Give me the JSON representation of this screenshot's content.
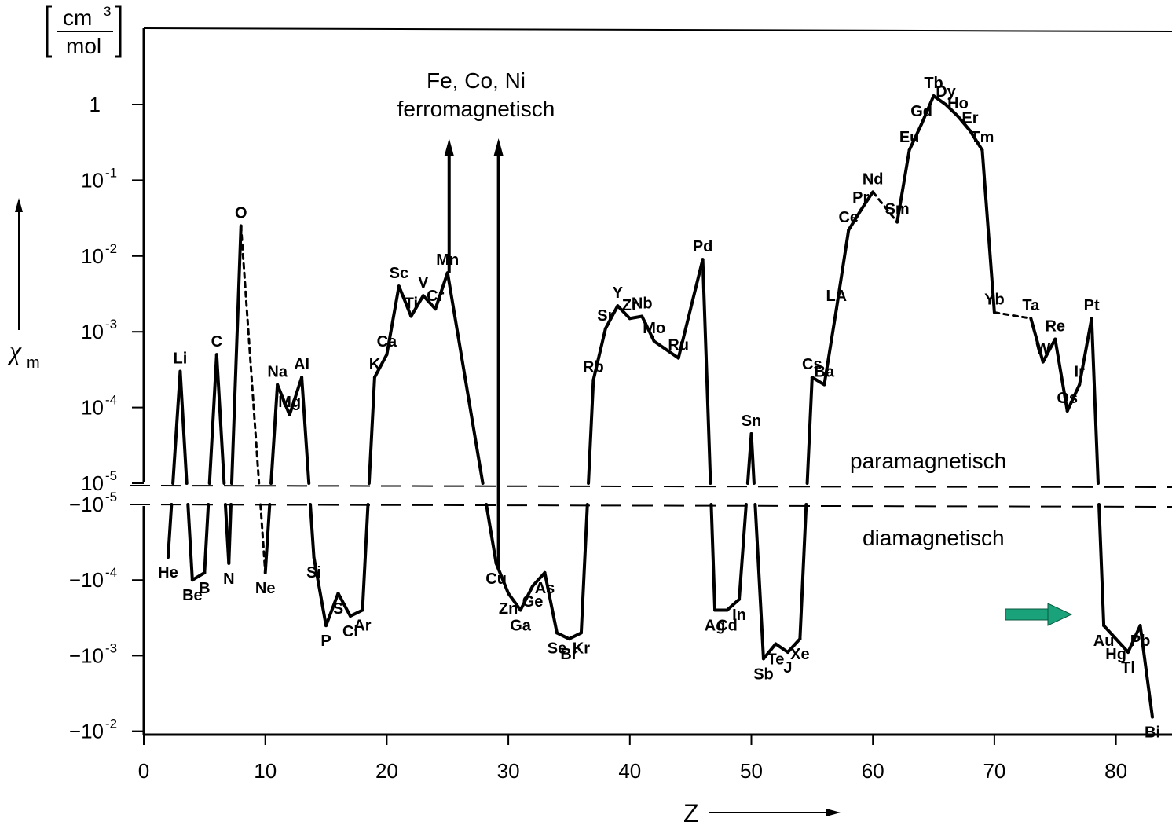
{
  "chart_data": {
    "type": "line",
    "y_scale": "symmetric-log",
    "x_ticks": [
      "0",
      "10",
      "20",
      "30",
      "40",
      "50",
      "60",
      "70",
      "80"
    ],
    "y_ticks_pos": [
      {
        "value": 1,
        "base": "1",
        "exp": ""
      },
      {
        "value": 0.1,
        "base": "10",
        "exp": "-1"
      },
      {
        "value": 0.01,
        "base": "10",
        "exp": "-2"
      },
      {
        "value": 0.001,
        "base": "10",
        "exp": "-3"
      },
      {
        "value": 0.0001,
        "base": "10",
        "exp": "-4"
      },
      {
        "value": 1e-05,
        "base": "10",
        "exp": "-5"
      }
    ],
    "y_ticks_neg": [
      {
        "value": -1e-05,
        "base": "−10",
        "exp": "-5"
      },
      {
        "value": -0.0001,
        "base": "−10",
        "exp": "-4"
      },
      {
        "value": -0.001,
        "base": "−10",
        "exp": "-3"
      },
      {
        "value": -0.01,
        "base": "−10",
        "exp": "-2"
      }
    ],
    "y_unit_num": "cm",
    "y_unit_exp": "3",
    "y_unit_den": "mol",
    "ylabel_main": "χ",
    "ylabel_sub": "m",
    "xlabel": "Z",
    "region_para": "paramagnetisch",
    "region_dia": "diamagnetisch",
    "ferro_line1": "Fe, Co, Ni",
    "ferro_line2": "ferromagnetisch",
    "highlight_color": "#1aa37a",
    "highlight_element": "Au",
    "points": [
      {
        "el": "He",
        "z": 2,
        "v": -5e-05
      },
      {
        "el": "Li",
        "z": 3,
        "v": 0.0003
      },
      {
        "el": "Be",
        "z": 4,
        "v": -0.0001
      },
      {
        "el": "B",
        "z": 5,
        "v": -8e-05
      },
      {
        "el": "C",
        "z": 6,
        "v": 0.0005
      },
      {
        "el": "N",
        "z": 7,
        "v": -6e-05
      },
      {
        "el": "O",
        "z": 8,
        "v": 0.025
      },
      {
        "el": "Ne",
        "z": 10,
        "v": -8e-05
      },
      {
        "el": "Na",
        "z": 11,
        "v": 0.0002
      },
      {
        "el": "Mg",
        "z": 12,
        "v": 8e-05
      },
      {
        "el": "Al",
        "z": 13,
        "v": 0.00025
      },
      {
        "el": "Si",
        "z": 14,
        "v": -5e-05
      },
      {
        "el": "P",
        "z": 15,
        "v": -0.0004
      },
      {
        "el": "S",
        "z": 16,
        "v": -0.00015
      },
      {
        "el": "Cl",
        "z": 17,
        "v": -0.0003
      },
      {
        "el": "Ar",
        "z": 18,
        "v": -0.00025
      },
      {
        "el": "K",
        "z": 19,
        "v": 0.00025
      },
      {
        "el": "Ca",
        "z": 20,
        "v": 0.0005
      },
      {
        "el": "Sc",
        "z": 21,
        "v": 0.004
      },
      {
        "el": "Ti",
        "z": 22,
        "v": 0.0016
      },
      {
        "el": "V",
        "z": 23,
        "v": 0.003
      },
      {
        "el": "Cr",
        "z": 24,
        "v": 0.002
      },
      {
        "el": "Mn",
        "z": 25,
        "v": 0.006
      },
      {
        "el": "Cu",
        "z": 29,
        "v": -6e-05
      },
      {
        "el": "Zn",
        "z": 30,
        "v": -0.00015
      },
      {
        "el": "Ga",
        "z": 31,
        "v": -0.00025
      },
      {
        "el": "Ge",
        "z": 32,
        "v": -0.00012
      },
      {
        "el": "As",
        "z": 33,
        "v": -8e-05
      },
      {
        "el": "Se",
        "z": 34,
        "v": -0.0005
      },
      {
        "el": "Br",
        "z": 35,
        "v": -0.0006
      },
      {
        "el": "Kr",
        "z": 36,
        "v": -0.0005
      },
      {
        "el": "Rb",
        "z": 37,
        "v": 0.00023
      },
      {
        "el": "Sr",
        "z": 38,
        "v": 0.0011
      },
      {
        "el": "Y",
        "z": 39,
        "v": 0.0022
      },
      {
        "el": "Zr",
        "z": 40,
        "v": 0.0015
      },
      {
        "el": "Nb",
        "z": 41,
        "v": 0.0016
      },
      {
        "el": "Mo",
        "z": 42,
        "v": 0.00075
      },
      {
        "el": "Ru",
        "z": 44,
        "v": 0.00045
      },
      {
        "el": "Pd",
        "z": 46,
        "v": 0.009
      },
      {
        "el": "Ag",
        "z": 47,
        "v": -0.00025
      },
      {
        "el": "Cd",
        "z": 48,
        "v": -0.00025
      },
      {
        "el": "In",
        "z": 49,
        "v": -0.00018
      },
      {
        "el": "Sn",
        "z": 50,
        "v": 4.5e-05
      },
      {
        "el": "Sb",
        "z": 51,
        "v": -0.0011
      },
      {
        "el": "Te",
        "z": 52,
        "v": -0.0007
      },
      {
        "el": "J",
        "z": 53,
        "v": -0.0009
      },
      {
        "el": "Xe",
        "z": 54,
        "v": -0.0006
      },
      {
        "el": "Cs",
        "z": 55,
        "v": 0.00025
      },
      {
        "el": "Ba",
        "z": 56,
        "v": 0.0002
      },
      {
        "el": "LA",
        "z": 57,
        "v": 0.002
      },
      {
        "el": "Ce",
        "z": 58,
        "v": 0.022
      },
      {
        "el": "Pr",
        "z": 59,
        "v": 0.04
      },
      {
        "el": "Nd",
        "z": 60,
        "v": 0.07
      },
      {
        "el": "Sm",
        "z": 62,
        "v": 0.028
      },
      {
        "el": "Eu",
        "z": 63,
        "v": 0.25
      },
      {
        "el": "Gd",
        "z": 64,
        "v": 0.55
      },
      {
        "el": "Tb",
        "z": 65,
        "v": 1.3
      },
      {
        "el": "Dy",
        "z": 66,
        "v": 1.0
      },
      {
        "el": "Ho",
        "z": 67,
        "v": 0.7
      },
      {
        "el": "Er",
        "z": 68,
        "v": 0.45
      },
      {
        "el": "Tm",
        "z": 69,
        "v": 0.25
      },
      {
        "el": "Yb",
        "z": 70,
        "v": 0.0018
      },
      {
        "el": "Ta",
        "z": 73,
        "v": 0.0015
      },
      {
        "el": "W",
        "z": 74,
        "v": 0.0004
      },
      {
        "el": "Re",
        "z": 75,
        "v": 0.0008
      },
      {
        "el": "Os",
        "z": 76,
        "v": 9e-05
      },
      {
        "el": "Ir",
        "z": 77,
        "v": 0.0002
      },
      {
        "el": "Pt",
        "z": 78,
        "v": 0.0015
      },
      {
        "el": "Au",
        "z": 79,
        "v": -0.0004
      },
      {
        "el": "Hg",
        "z": 80,
        "v": -0.0006
      },
      {
        "el": "Tl",
        "z": 81,
        "v": -0.0009
      },
      {
        "el": "Pb",
        "z": 82,
        "v": -0.0004
      },
      {
        "el": "Bi",
        "z": 83,
        "v": -0.0065
      }
    ],
    "ferro_z": [
      25,
      29
    ]
  }
}
